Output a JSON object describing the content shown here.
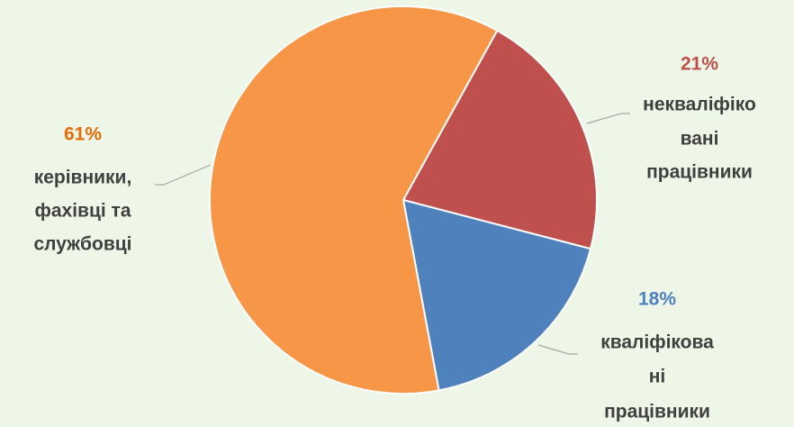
{
  "chart_data": {
    "type": "pie",
    "categories": [
      [
        "некваліфіко",
        "вані",
        "працівники"
      ],
      [
        "кваліфікова",
        "ні",
        "працівники"
      ],
      [
        "керівники,",
        "фахівці та",
        "службовці"
      ]
    ],
    "values": [
      21,
      18,
      61
    ],
    "value_labels": [
      "21%",
      "18%",
      "61%"
    ],
    "colors": [
      "#c0504d",
      "#4f81bd",
      "#f79646"
    ],
    "label_colors": [
      "#c0504d",
      "#4f81bd",
      "#e46c0a"
    ]
  }
}
